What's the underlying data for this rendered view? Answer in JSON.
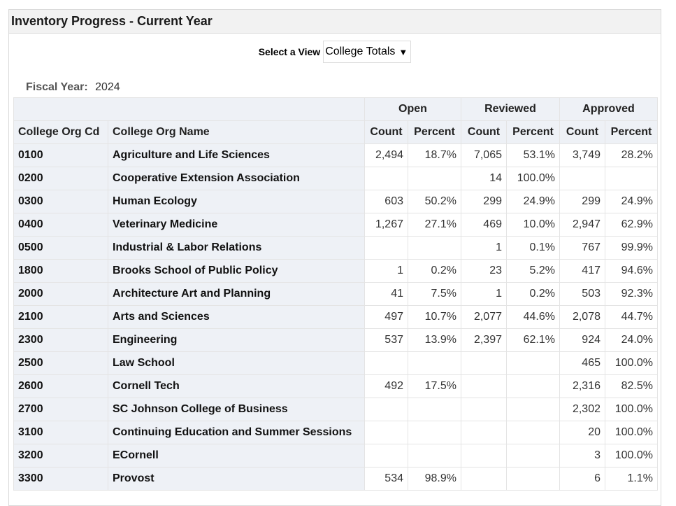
{
  "panel": {
    "title": "Inventory Progress - Current Year"
  },
  "view": {
    "label": "Select a View",
    "selected": "College Totals"
  },
  "fiscal": {
    "label": "Fiscal Year:",
    "value": "2024"
  },
  "table": {
    "groups": [
      "Open",
      "Reviewed",
      "Approved"
    ],
    "columns": [
      "College Org Cd",
      "College Org Name",
      "Count",
      "Percent",
      "Count",
      "Percent",
      "Count",
      "Percent"
    ],
    "rows": [
      {
        "cd": "0100",
        "name": "Agriculture and Life Sciences",
        "open_count": "2,494",
        "open_pct": "18.7%",
        "rev_count": "7,065",
        "rev_pct": "53.1%",
        "app_count": "3,749",
        "app_pct": "28.2%"
      },
      {
        "cd": "0200",
        "name": "Cooperative Extension Association",
        "open_count": "",
        "open_pct": "",
        "rev_count": "14",
        "rev_pct": "100.0%",
        "app_count": "",
        "app_pct": ""
      },
      {
        "cd": "0300",
        "name": "Human Ecology",
        "open_count": "603",
        "open_pct": "50.2%",
        "rev_count": "299",
        "rev_pct": "24.9%",
        "app_count": "299",
        "app_pct": "24.9%"
      },
      {
        "cd": "0400",
        "name": "Veterinary Medicine",
        "open_count": "1,267",
        "open_pct": "27.1%",
        "rev_count": "469",
        "rev_pct": "10.0%",
        "app_count": "2,947",
        "app_pct": "62.9%"
      },
      {
        "cd": "0500",
        "name": "Industrial & Labor Relations",
        "open_count": "",
        "open_pct": "",
        "rev_count": "1",
        "rev_pct": "0.1%",
        "app_count": "767",
        "app_pct": "99.9%"
      },
      {
        "cd": "1800",
        "name": "Brooks School of Public Policy",
        "open_count": "1",
        "open_pct": "0.2%",
        "rev_count": "23",
        "rev_pct": "5.2%",
        "app_count": "417",
        "app_pct": "94.6%"
      },
      {
        "cd": "2000",
        "name": "Architecture Art and Planning",
        "open_count": "41",
        "open_pct": "7.5%",
        "rev_count": "1",
        "rev_pct": "0.2%",
        "app_count": "503",
        "app_pct": "92.3%"
      },
      {
        "cd": "2100",
        "name": "Arts and Sciences",
        "open_count": "497",
        "open_pct": "10.7%",
        "rev_count": "2,077",
        "rev_pct": "44.6%",
        "app_count": "2,078",
        "app_pct": "44.7%"
      },
      {
        "cd": "2300",
        "name": "Engineering",
        "open_count": "537",
        "open_pct": "13.9%",
        "rev_count": "2,397",
        "rev_pct": "62.1%",
        "app_count": "924",
        "app_pct": "24.0%"
      },
      {
        "cd": "2500",
        "name": "Law School",
        "open_count": "",
        "open_pct": "",
        "rev_count": "",
        "rev_pct": "",
        "app_count": "465",
        "app_pct": "100.0%"
      },
      {
        "cd": "2600",
        "name": "Cornell Tech",
        "open_count": "492",
        "open_pct": "17.5%",
        "rev_count": "",
        "rev_pct": "",
        "app_count": "2,316",
        "app_pct": "82.5%"
      },
      {
        "cd": "2700",
        "name": "SC Johnson College of Business",
        "open_count": "",
        "open_pct": "",
        "rev_count": "",
        "rev_pct": "",
        "app_count": "2,302",
        "app_pct": "100.0%"
      },
      {
        "cd": "3100",
        "name": "Continuing Education and Summer Sessions",
        "open_count": "",
        "open_pct": "",
        "rev_count": "",
        "rev_pct": "",
        "app_count": "20",
        "app_pct": "100.0%"
      },
      {
        "cd": "3200",
        "name": "ECornell",
        "open_count": "",
        "open_pct": "",
        "rev_count": "",
        "rev_pct": "",
        "app_count": "3",
        "app_pct": "100.0%"
      },
      {
        "cd": "3300",
        "name": "Provost",
        "open_count": "534",
        "open_pct": "98.9%",
        "rev_count": "",
        "rev_pct": "",
        "app_count": "6",
        "app_pct": "1.1%"
      }
    ]
  }
}
